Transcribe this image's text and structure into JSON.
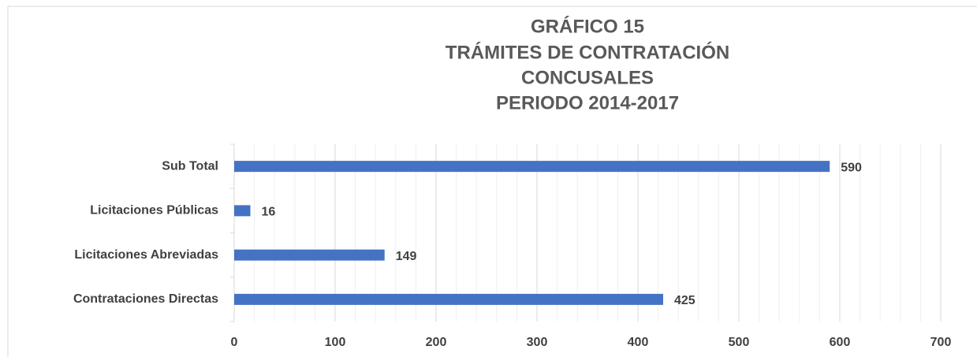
{
  "chart_data": {
    "type": "barh",
    "title": [
      "GRÁFICO 15",
      "TRÁMITES DE CONTRATACIÓN",
      "CONCUSALES",
      "PERIODO  2014-2017"
    ],
    "categories": [
      "Sub Total",
      "Licitaciones Públicas",
      "Licitaciones Abreviadas",
      "Contrataciones Directas"
    ],
    "values": [
      590,
      16,
      149,
      425
    ],
    "color": "#4472c4",
    "xlim": [
      0,
      700
    ],
    "xticks": [
      0,
      100,
      200,
      300,
      400,
      500,
      600,
      700
    ],
    "grid": true
  }
}
